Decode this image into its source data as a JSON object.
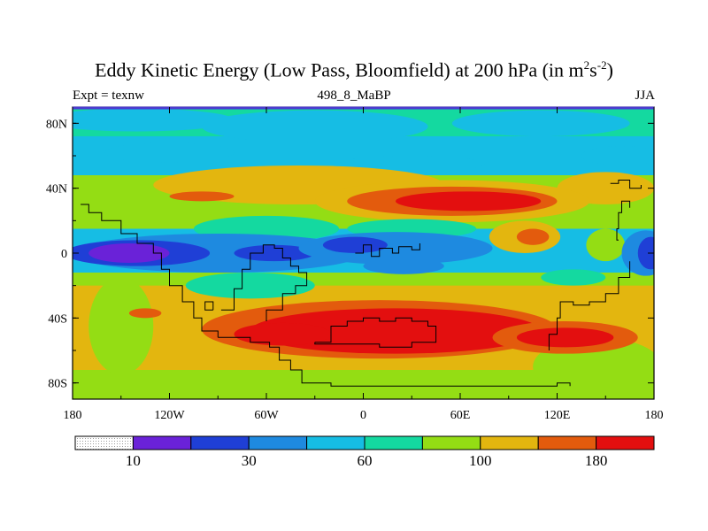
{
  "title": {
    "main": "Eddy Kinetic Energy (Low Pass, Bloomfield) at 200 hPa (in m",
    "sup1": "2",
    "mid": "s",
    "sup2": "-2",
    "end": ")"
  },
  "subtitle": {
    "left": "Expt = texnw",
    "center": "498_8_MaBP",
    "right": "JJA"
  },
  "colors": {
    "levels": [
      "#d9d9d9",
      "#6a22d8",
      "#1f3fd6",
      "#1e8ae0",
      "#16bde4",
      "#14d9a0",
      "#94dd14",
      "#e3b60f",
      "#e35b0d",
      "#e30f0f"
    ],
    "coast": "#000000"
  },
  "chart_data": {
    "type": "contour-map",
    "title": "Eddy Kinetic Energy (Low Pass, Bloomfield) at 200 hPa (in m^2 s^-2)",
    "projection": "cylindrical-equidistant",
    "x_ticks": [
      "180",
      "120W",
      "60W",
      "0",
      "60E",
      "120E",
      "180"
    ],
    "x_tick_values": [
      -180,
      -120,
      -60,
      0,
      60,
      120,
      180
    ],
    "y_ticks": [
      "80N",
      "40N",
      "0",
      "40S",
      "80S"
    ],
    "y_tick_values": [
      80,
      40,
      0,
      -40,
      -80
    ],
    "xlim": [
      -180,
      180
    ],
    "ylim": [
      -90,
      90
    ],
    "colorbar": {
      "bins": 10,
      "labels": [
        {
          "text": "10",
          "at_boundary": 1
        },
        {
          "text": "30",
          "at_boundary": 3
        },
        {
          "text": "60",
          "at_boundary": 5
        },
        {
          "text": "100",
          "at_boundary": 7
        },
        {
          "text": "180",
          "at_boundary": 9
        }
      ]
    },
    "fields": {
      "background_level": 5,
      "bands": [
        {
          "lat": [
            55,
            90
          ],
          "level": 5
        },
        {
          "lat": [
            48,
            72
          ],
          "level": 4
        },
        {
          "lat": [
            15,
            48
          ],
          "level": 6
        },
        {
          "lat": [
            -20,
            15
          ],
          "level": 4
        },
        {
          "lat": [
            -28,
            -12
          ],
          "level": 6
        },
        {
          "lat": [
            -75,
            -20
          ],
          "level": 7
        },
        {
          "lat": [
            -90,
            -72
          ],
          "level": 6
        }
      ],
      "blobs": [
        {
          "lon": -140,
          "lat": 82,
          "rlon": 60,
          "rlat": 7,
          "level": 4
        },
        {
          "lon": -30,
          "lat": 78,
          "rlon": 70,
          "rlat": 10,
          "level": 4
        },
        {
          "lon": 110,
          "lat": 80,
          "rlon": 55,
          "rlat": 8,
          "level": 4
        },
        {
          "lon": 160,
          "lat": 60,
          "rlon": 25,
          "rlat": 6,
          "level": 4
        },
        {
          "lon": -120,
          "lat": 62,
          "rlon": 40,
          "rlat": 6,
          "level": 4
        },
        {
          "lon": 30,
          "lat": 55,
          "rlon": 45,
          "rlat": 5,
          "level": 4
        },
        {
          "lon": -40,
          "lat": 42,
          "rlon": 90,
          "rlat": 12,
          "level": 7
        },
        {
          "lon": 150,
          "lat": 40,
          "rlon": 30,
          "rlat": 10,
          "level": 7
        },
        {
          "lon": 55,
          "lat": 32,
          "rlon": 85,
          "rlat": 13,
          "level": 7
        },
        {
          "lon": 55,
          "lat": 32,
          "rlon": 65,
          "rlat": 9,
          "level": 8
        },
        {
          "lon": 65,
          "lat": 32,
          "rlon": 45,
          "rlat": 6,
          "level": 9
        },
        {
          "lon": -100,
          "lat": 35,
          "rlon": 20,
          "rlat": 3,
          "level": 8
        },
        {
          "lon": -60,
          "lat": 15,
          "rlon": 45,
          "rlat": 8,
          "level": 5
        },
        {
          "lon": 30,
          "lat": 15,
          "rlon": 40,
          "rlat": 6,
          "level": 5
        },
        {
          "lon": 100,
          "lat": 10,
          "rlon": 22,
          "rlat": 10,
          "level": 7
        },
        {
          "lon": 105,
          "lat": 10,
          "rlon": 10,
          "rlat": 5,
          "level": 8
        },
        {
          "lon": 150,
          "lat": 5,
          "rlon": 12,
          "rlat": 10,
          "level": 6
        },
        {
          "lon": -90,
          "lat": 0,
          "rlon": 90,
          "rlat": 12,
          "level": 3
        },
        {
          "lon": -140,
          "lat": 0,
          "rlon": 45,
          "rlat": 8,
          "level": 2
        },
        {
          "lon": -145,
          "lat": 0,
          "rlon": 25,
          "rlat": 6,
          "level": 1
        },
        {
          "lon": -55,
          "lat": 0,
          "rlon": 25,
          "rlat": 5,
          "level": 2
        },
        {
          "lon": 20,
          "lat": 3,
          "rlon": 60,
          "rlat": 10,
          "level": 3
        },
        {
          "lon": -5,
          "lat": 5,
          "rlon": 20,
          "rlat": 5,
          "level": 2
        },
        {
          "lon": 25,
          "lat": -8,
          "rlon": 25,
          "rlat": 5,
          "level": 3
        },
        {
          "lon": 175,
          "lat": 0,
          "rlon": 15,
          "rlat": 14,
          "level": 3
        },
        {
          "lon": 178,
          "lat": 0,
          "rlon": 8,
          "rlat": 10,
          "level": 2
        },
        {
          "lon": -70,
          "lat": -20,
          "rlon": 40,
          "rlat": 8,
          "level": 5
        },
        {
          "lon": 130,
          "lat": -15,
          "rlon": 20,
          "rlat": 5,
          "level": 5
        },
        {
          "lon": 145,
          "lat": -70,
          "rlon": 40,
          "rlat": 18,
          "level": 6
        },
        {
          "lon": -150,
          "lat": -45,
          "rlon": 20,
          "rlat": 30,
          "level": 6
        },
        {
          "lon": -135,
          "lat": -37,
          "rlon": 10,
          "rlat": 3,
          "level": 8
        },
        {
          "lon": 10,
          "lat": -47,
          "rlon": 110,
          "rlat": 18,
          "level": 8
        },
        {
          "lon": 20,
          "lat": -48,
          "rlon": 90,
          "rlat": 14,
          "level": 9
        },
        {
          "lon": -50,
          "lat": -50,
          "rlon": 30,
          "rlat": 7,
          "level": 9
        },
        {
          "lon": 125,
          "lat": -52,
          "rlon": 45,
          "rlat": 10,
          "level": 8
        },
        {
          "lon": 125,
          "lat": -52,
          "rlon": 30,
          "rlat": 6,
          "level": 9
        }
      ]
    },
    "coastlines": [
      [
        [
          -175,
          30
        ],
        [
          -170,
          25
        ],
        [
          -162,
          20
        ],
        [
          -150,
          12
        ],
        [
          -140,
          6
        ],
        [
          -130,
          0
        ],
        [
          -125,
          -10
        ],
        [
          -120,
          -20
        ],
        [
          -112,
          -30
        ],
        [
          -105,
          -40
        ],
        [
          -100,
          -48
        ],
        [
          -90,
          -52
        ]
      ],
      [
        [
          -88,
          -35
        ],
        [
          -80,
          -22
        ],
        [
          -75,
          -10
        ],
        [
          -70,
          0
        ],
        [
          -62,
          5
        ],
        [
          -55,
          3
        ],
        [
          -50,
          -3
        ],
        [
          -45,
          -8
        ],
        [
          -40,
          -12
        ],
        [
          -35,
          -20
        ],
        [
          -42,
          -25
        ],
        [
          -50,
          -35
        ],
        [
          -60,
          -42
        ]
      ],
      [
        [
          -90,
          -52
        ],
        [
          -70,
          -55
        ],
        [
          -58,
          -58
        ],
        [
          -52,
          -66
        ],
        [
          -45,
          -72
        ],
        [
          -38,
          -80
        ],
        [
          -20,
          -82
        ],
        [
          20,
          -82
        ],
        [
          60,
          -82
        ],
        [
          110,
          -82
        ],
        [
          120,
          -80
        ],
        [
          128,
          -82
        ]
      ],
      [
        [
          -30,
          -55
        ],
        [
          -20,
          -55
        ],
        [
          -20,
          -45
        ],
        [
          -10,
          -42
        ],
        [
          0,
          -40
        ],
        [
          10,
          -42
        ],
        [
          20,
          -40
        ],
        [
          30,
          -42
        ],
        [
          40,
          -45
        ],
        [
          45,
          -55
        ],
        [
          30,
          -58
        ],
        [
          10,
          -56
        ],
        [
          -10,
          -56
        ],
        [
          -30,
          -55
        ]
      ],
      [
        [
          -5,
          0
        ],
        [
          0,
          5
        ],
        [
          5,
          -2
        ],
        [
          10,
          3
        ],
        [
          18,
          0
        ],
        [
          22,
          4
        ],
        [
          30,
          2
        ],
        [
          35,
          6
        ]
      ],
      [
        [
          115,
          -60
        ],
        [
          115,
          -50
        ],
        [
          120,
          -40
        ],
        [
          122,
          -30
        ],
        [
          130,
          -32
        ],
        [
          140,
          -30
        ],
        [
          150,
          -25
        ],
        [
          158,
          -15
        ],
        [
          165,
          -5
        ]
      ],
      [
        [
          158,
          8
        ],
        [
          157,
          15
        ],
        [
          158,
          25
        ],
        [
          160,
          32
        ],
        [
          165,
          28
        ]
      ],
      [
        [
          153,
          43
        ],
        [
          158,
          45
        ],
        [
          165,
          40
        ],
        [
          172,
          42
        ]
      ],
      [
        [
          -93,
          -35
        ],
        [
          -93,
          -30
        ],
        [
          -98,
          -30
        ],
        [
          -98,
          -35
        ],
        [
          -93,
          -35
        ]
      ]
    ]
  }
}
